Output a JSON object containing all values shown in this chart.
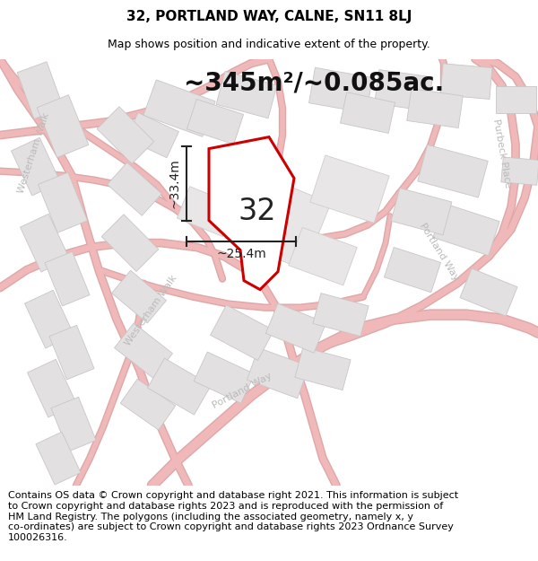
{
  "title": "32, PORTLAND WAY, CALNE, SN11 8LJ",
  "subtitle": "Map shows position and indicative extent of the property.",
  "area_label": "~345m²/~0.085ac.",
  "plot_number": "32",
  "dim_width_label": "~25.4m",
  "dim_height_label": "~33.4m",
  "footer_text": "Contains OS data © Crown copyright and database right 2021. This information is subject\nto Crown copyright and database rights 2023 and is reproduced with the permission of\nHM Land Registry. The polygons (including the associated geometry, namely x, y\nco-ordinates) are subject to Crown copyright and database rights 2023 Ordnance Survey\n100026316.",
  "map_bg": "#f7f6f6",
  "building_face": "#e2e0e0",
  "building_edge": "#c8c6c6",
  "road_pink": "#f0b8b8",
  "road_outline": "#dda8a8",
  "plot_fill": "#ffffff",
  "plot_edge": "#cc0000",
  "dim_color": "#222222",
  "label_color": "#bbbbbb",
  "title_fs": 11,
  "subtitle_fs": 9,
  "area_fs": 20,
  "plotnum_fs": 24,
  "dim_fs": 10,
  "footer_fs": 8,
  "street_fs": 8
}
